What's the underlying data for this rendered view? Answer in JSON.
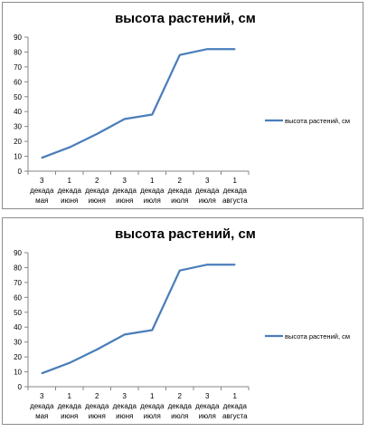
{
  "chart_data": [
    {
      "type": "line",
      "title": "высота растений, см",
      "xlabel": "",
      "ylabel": "",
      "categories": [
        [
          "3",
          "декада",
          "мая"
        ],
        [
          "1",
          "декада",
          "июня"
        ],
        [
          "2",
          "декада",
          "июня"
        ],
        [
          "3",
          "декада",
          "июня"
        ],
        [
          "1",
          "декада",
          "июля"
        ],
        [
          "2",
          "декада",
          "июля"
        ],
        [
          "3",
          "декада",
          "июля"
        ],
        [
          "1",
          "декада",
          "августа"
        ]
      ],
      "series": [
        {
          "name": "высота растений, см",
          "values": [
            9,
            16,
            25,
            35,
            38,
            78,
            82,
            82
          ]
        }
      ],
      "ylim": [
        0,
        90
      ],
      "yticks": [
        0,
        10,
        20,
        30,
        40,
        50,
        60,
        70,
        80,
        90
      ],
      "grid": false,
      "legend": "right",
      "colors": {
        "line": "#4a7ebb"
      }
    },
    {
      "type": "line",
      "title": "высота растений, см",
      "xlabel": "",
      "ylabel": "",
      "categories": [
        [
          "3",
          "декада",
          "мая"
        ],
        [
          "1",
          "декада",
          "июня"
        ],
        [
          "2",
          "декада",
          "июня"
        ],
        [
          "3",
          "декада",
          "июня"
        ],
        [
          "1",
          "декада",
          "июля"
        ],
        [
          "2",
          "декада",
          "июля"
        ],
        [
          "3",
          "декада",
          "июля"
        ],
        [
          "1",
          "декада",
          "августа"
        ]
      ],
      "series": [
        {
          "name": "высота растений, см",
          "values": [
            9,
            16,
            25,
            35,
            38,
            78,
            82,
            82
          ]
        }
      ],
      "ylim": [
        0,
        90
      ],
      "yticks": [
        0,
        10,
        20,
        30,
        40,
        50,
        60,
        70,
        80,
        90
      ],
      "grid": false,
      "legend": "right",
      "colors": {
        "line": "#4a7ebb"
      }
    }
  ]
}
